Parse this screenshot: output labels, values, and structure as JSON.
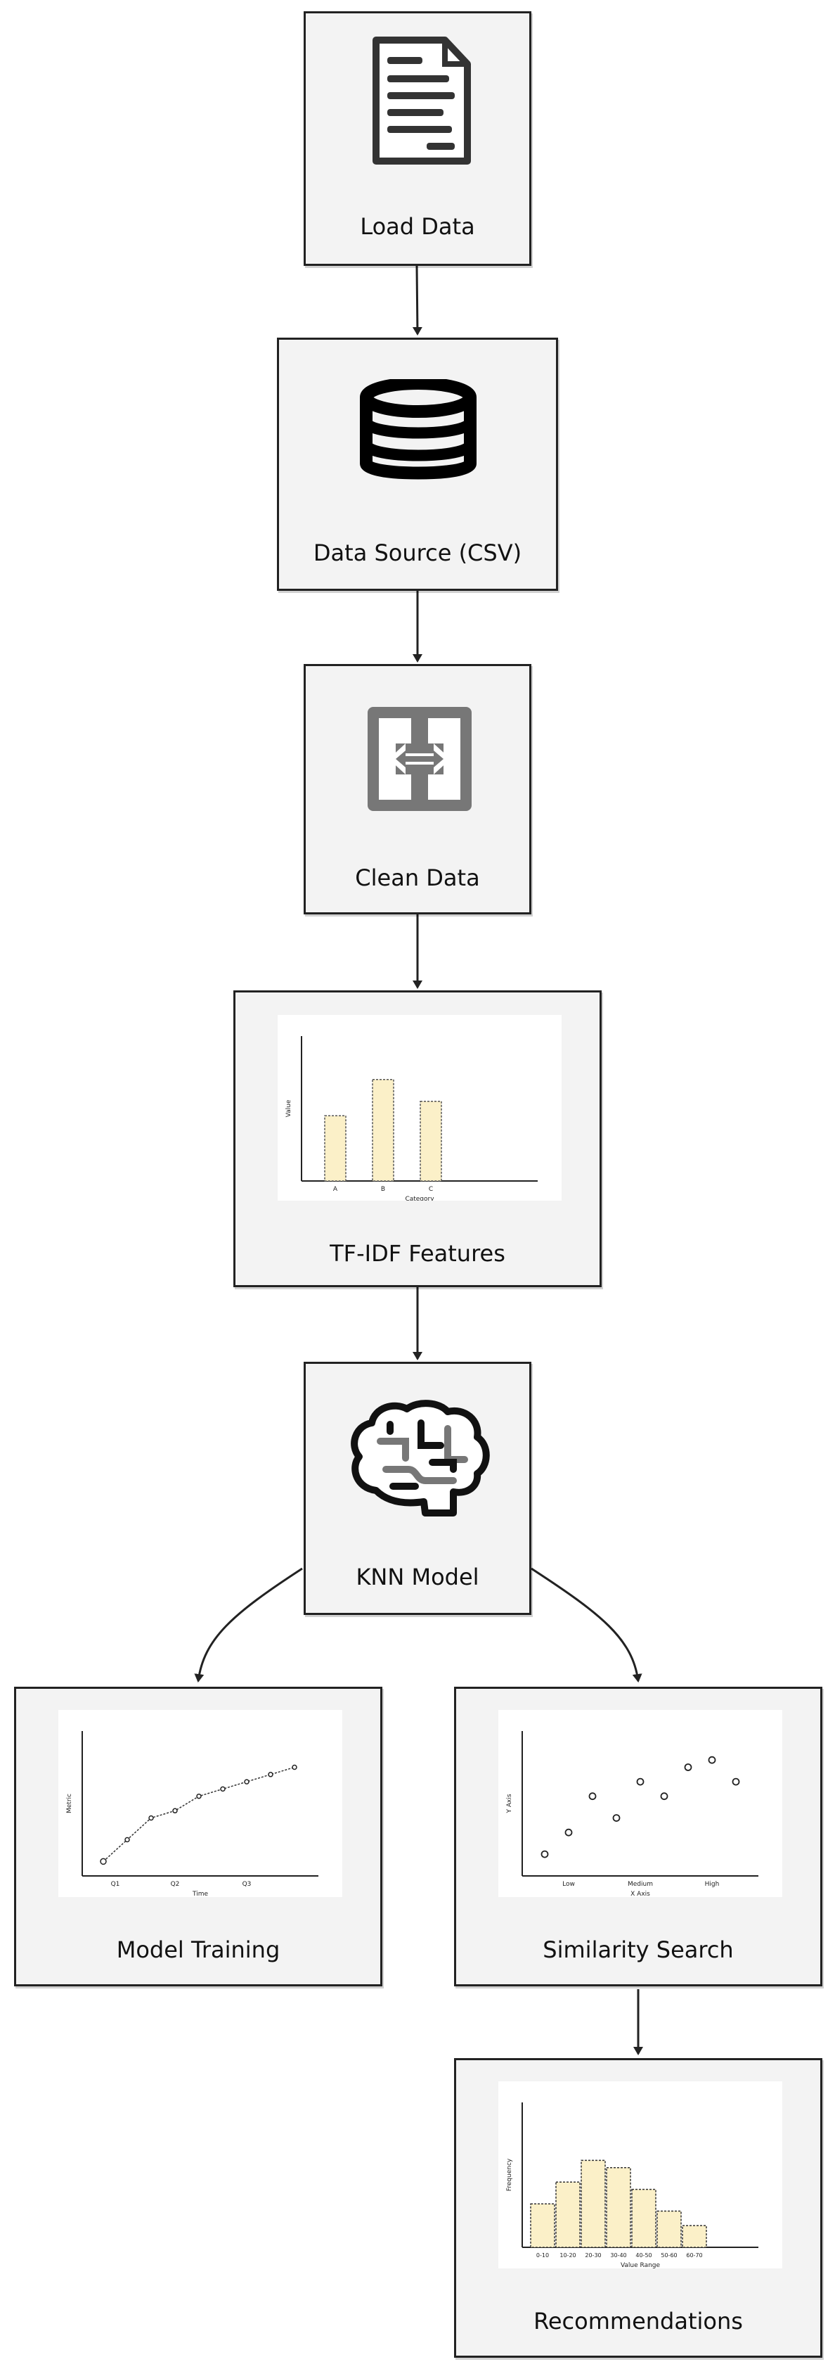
{
  "nodes": {
    "load_data": {
      "label": "Load Data",
      "icon": "document-icon"
    },
    "data_source": {
      "label": "Data Source (CSV)",
      "icon": "database-icon"
    },
    "clean_data": {
      "label": "Clean Data",
      "icon": "data-transfer-icon"
    },
    "tfidf": {
      "label": "TF-IDF Features"
    },
    "knn": {
      "label": "KNN Model",
      "icon": "brain-icon"
    },
    "training": {
      "label": "Model Training"
    },
    "similarity": {
      "label": "Similarity Search"
    },
    "recommendations": {
      "label": "Recommendations"
    }
  },
  "edges": [
    [
      "load_data",
      "data_source"
    ],
    [
      "data_source",
      "clean_data"
    ],
    [
      "clean_data",
      "tfidf"
    ],
    [
      "tfidf",
      "knn"
    ],
    [
      "knn",
      "training"
    ],
    [
      "knn",
      "similarity"
    ],
    [
      "similarity",
      "recommendations"
    ]
  ],
  "colors": {
    "bar_fill": "#fbf0c8",
    "node_fill": "#f3f3f3",
    "stroke": "#222222"
  },
  "chart_data": [
    {
      "id": "tfidf_chart",
      "type": "bar",
      "categories": [
        "A",
        "B",
        "C"
      ],
      "values": [
        45,
        70,
        55
      ],
      "ylim": [
        0,
        100
      ],
      "xlabel": "Category",
      "ylabel": "Value"
    },
    {
      "id": "training_chart",
      "type": "line",
      "x": [
        0,
        1,
        2,
        3,
        4,
        5,
        6,
        7,
        8
      ],
      "y": [
        10,
        25,
        40,
        45,
        55,
        60,
        65,
        70,
        75
      ],
      "ylim": [
        0,
        100
      ],
      "x_ticks": [
        "Q1",
        "Q2",
        "Q3"
      ],
      "xlabel": "Time",
      "ylabel": "Metric"
    },
    {
      "id": "similarity_chart",
      "type": "scatter",
      "x": [
        0,
        0.5,
        1,
        1.5,
        2,
        2.5,
        3,
        3.5,
        4
      ],
      "y": [
        15,
        30,
        55,
        40,
        65,
        55,
        75,
        80,
        65
      ],
      "ylim": [
        0,
        100
      ],
      "x_ticks": [
        "Low",
        "Medium",
        "High"
      ],
      "xlabel": "X Axis",
      "ylabel": "Y Axis"
    },
    {
      "id": "recommendations_chart",
      "type": "bar",
      "categories": [
        "0-10",
        "10-20",
        "20-30",
        "30-40",
        "40-50",
        "50-60",
        "60-70"
      ],
      "values": [
        30,
        45,
        60,
        55,
        40,
        25,
        15
      ],
      "ylim": [
        0,
        100
      ],
      "xlabel": "Value Range",
      "ylabel": "Frequency"
    }
  ]
}
